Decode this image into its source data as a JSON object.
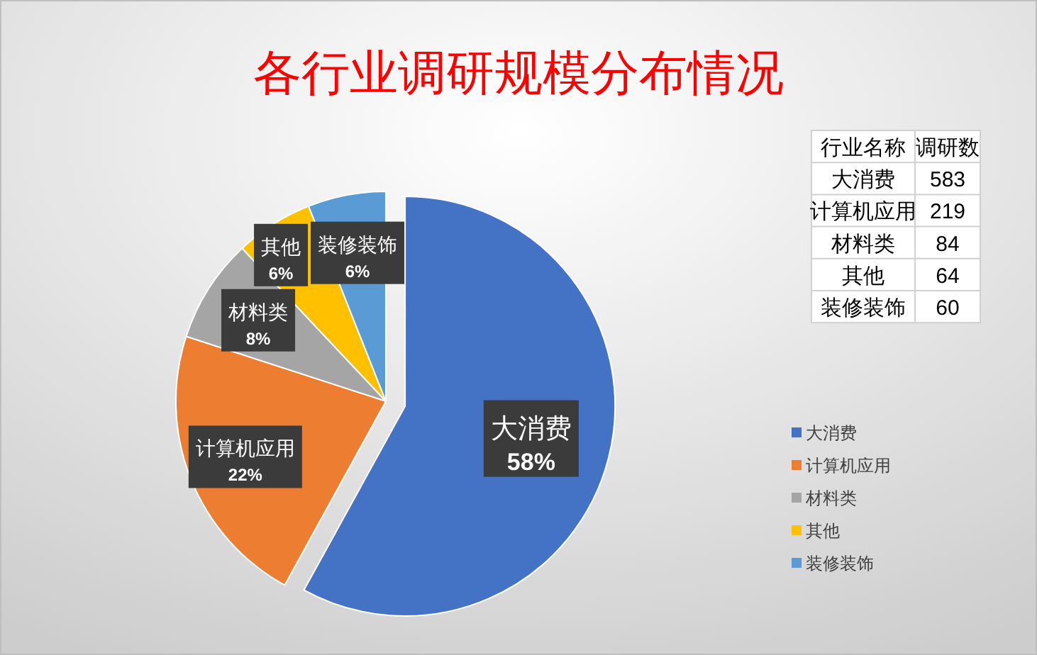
{
  "chart_data": [
    {
      "type": "pie",
      "title": "各行业调研规模分布情况",
      "categories": [
        "大消费",
        "计算机应用",
        "材料类",
        "其他",
        "装修装饰"
      ],
      "values": [
        58,
        22,
        8,
        6,
        6
      ],
      "colors": [
        "#4472c4",
        "#ed7d31",
        "#a5a5a5",
        "#ffc000",
        "#5b9bd5"
      ],
      "value_labels": [
        "58%",
        "22%",
        "8%",
        "6%",
        "6%"
      ],
      "legend": "right"
    },
    {
      "type": "other",
      "annotations": [
        "行业名称",
        "调研数"
      ],
      "categories": [
        "大消费",
        "计算机应用",
        "材料类",
        "其他",
        "装修装饰"
      ],
      "values": [
        583,
        219,
        84,
        64,
        60
      ],
      "data_labels": true
    }
  ]
}
